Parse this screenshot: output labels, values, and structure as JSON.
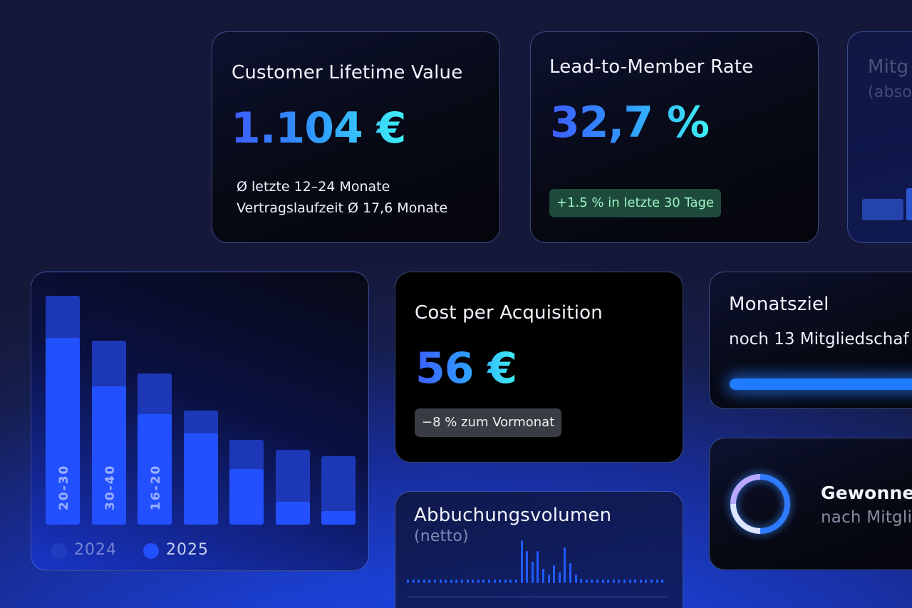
{
  "clv": {
    "title": "Customer Lifetime Value",
    "value": "1.104 €",
    "line1": "Ø letzte 12–24 Monate",
    "line2": "Vertragslaufzeit Ø 17,6 Monate"
  },
  "lead": {
    "title": "Lead-to-Member Rate",
    "value": "32,7 %",
    "badge": "+1.5 % in letzte 30 Tage"
  },
  "partial_top": {
    "title": "Mitg",
    "subtitle": "(abso"
  },
  "age_chart": {
    "labels": [
      "20-30",
      "30-40",
      "16-20"
    ],
    "legend": [
      "2024",
      "2025"
    ],
    "colors": {
      "2024": "#1f3dbd",
      "2025": "#2350ff"
    }
  },
  "cpa": {
    "title": "Cost per Acquisition",
    "value": "56 €",
    "badge": "−8 % zum Vormonat"
  },
  "goal": {
    "title": "Monatsziel",
    "subtitle": "noch 13 Mitgliedschaf"
  },
  "debit": {
    "title": "Abbuchungsvolumen",
    "subtitle": "(netto)"
  },
  "won": {
    "title": "Gewonne",
    "subtitle": "nach Mitgli"
  }
}
